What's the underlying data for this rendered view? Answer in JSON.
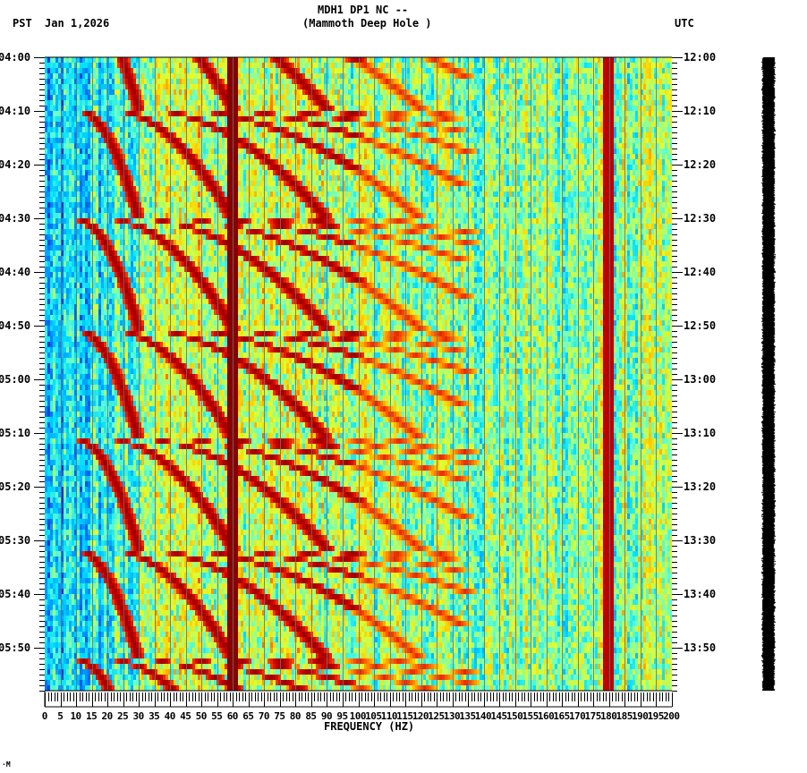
{
  "header": {
    "title_line1": "MDH1 DP1 NC --",
    "title_line2": "(Mammoth Deep Hole )",
    "left_tz": "PST",
    "date": "Jan 1,2026",
    "right_tz": "UTC"
  },
  "footer": {
    "xlabel": "FREQUENCY (HZ)",
    "corner_mark": "·M"
  },
  "chart_data": {
    "type": "heatmap",
    "title": "MDH1 DP1 NC -- (Mammoth Deep Hole )",
    "subtitle": "Jan 1,2026",
    "xlabel": "FREQUENCY (HZ)",
    "ylabel_left": "PST",
    "ylabel_right": "UTC",
    "x_range": [
      0,
      200
    ],
    "x_ticks": [
      "0",
      "5",
      "10",
      "15",
      "20",
      "25",
      "30",
      "35",
      "40",
      "45",
      "50",
      "55",
      "60",
      "65",
      "70",
      "75",
      "80",
      "85",
      "90",
      "95",
      "100",
      "105",
      "110",
      "115",
      "120",
      "125",
      "130",
      "135",
      "140",
      "145",
      "150",
      "155",
      "160",
      "165",
      "170",
      "175",
      "180",
      "185",
      "190",
      "195",
      "200"
    ],
    "y_ticks_left": [
      "04:00",
      "04:10",
      "04:20",
      "04:30",
      "04:40",
      "04:50",
      "05:00",
      "05:10",
      "05:20",
      "05:30",
      "05:40",
      "05:50"
    ],
    "y_ticks_right": [
      "12:00",
      "12:10",
      "12:20",
      "12:30",
      "12:40",
      "12:50",
      "13:00",
      "13:10",
      "13:20",
      "13:30",
      "13:40",
      "13:50"
    ],
    "time_span_minutes": [
      0,
      118
    ],
    "grid": "vertical lines every 5 Hz",
    "colormap": [
      "#0033cc",
      "#0088ff",
      "#00ddff",
      "#66ffcc",
      "#ddff33",
      "#ffcc00",
      "#ff5500",
      "#cc0000",
      "#880000"
    ],
    "persistent_lines_hz": [
      60,
      180
    ],
    "gliding_harmonics": {
      "cycle_minutes": 20.5,
      "fundamental_start_hz": 20,
      "fundamental_end_hz": 60,
      "harmonic_count": 9,
      "note": "Repeating upward-gliding tremor harmonics every ~20 min"
    },
    "background": {
      "low_freq_below_25hz": "blue (low power)",
      "mid_freq": "cyan/yellow",
      "high_freq": "green-yellow"
    }
  },
  "trace_bar": {
    "color": "#000000"
  }
}
